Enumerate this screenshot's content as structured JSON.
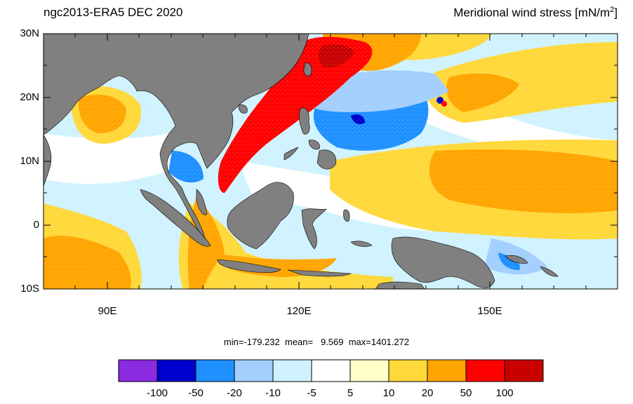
{
  "title_left": "ngc2013-ERA5  DEC 2020",
  "title_right_text": "Meridional wind stress [mN/m",
  "title_right_sup": "2",
  "title_right_close": "]",
  "stats": {
    "min_label": "min=-179.232",
    "mean_label": "mean=   9.569",
    "max_label": "max=1401.272"
  },
  "map": {
    "lon_range": [
      80,
      170
    ],
    "lat_range": [
      -10,
      30
    ],
    "lat_ticks": [
      "30N",
      "20N",
      "10N",
      "0",
      "10S"
    ],
    "lon_ticks": [
      "90E",
      "120E",
      "150E"
    ],
    "land_color": "#808080"
  },
  "colorbar": {
    "colors": [
      "#8a2be2",
      "#0000cd",
      "#1e90ff",
      "#a2cffe",
      "#d0f2ff",
      "#ffffff",
      "#ffffc8",
      "#ffd83a",
      "#ffa500",
      "#ff0000",
      "#c80000"
    ],
    "labels": [
      "-100",
      "-50",
      "-20",
      "-10",
      "-5",
      "5",
      "10",
      "20",
      "50",
      "100"
    ]
  }
}
